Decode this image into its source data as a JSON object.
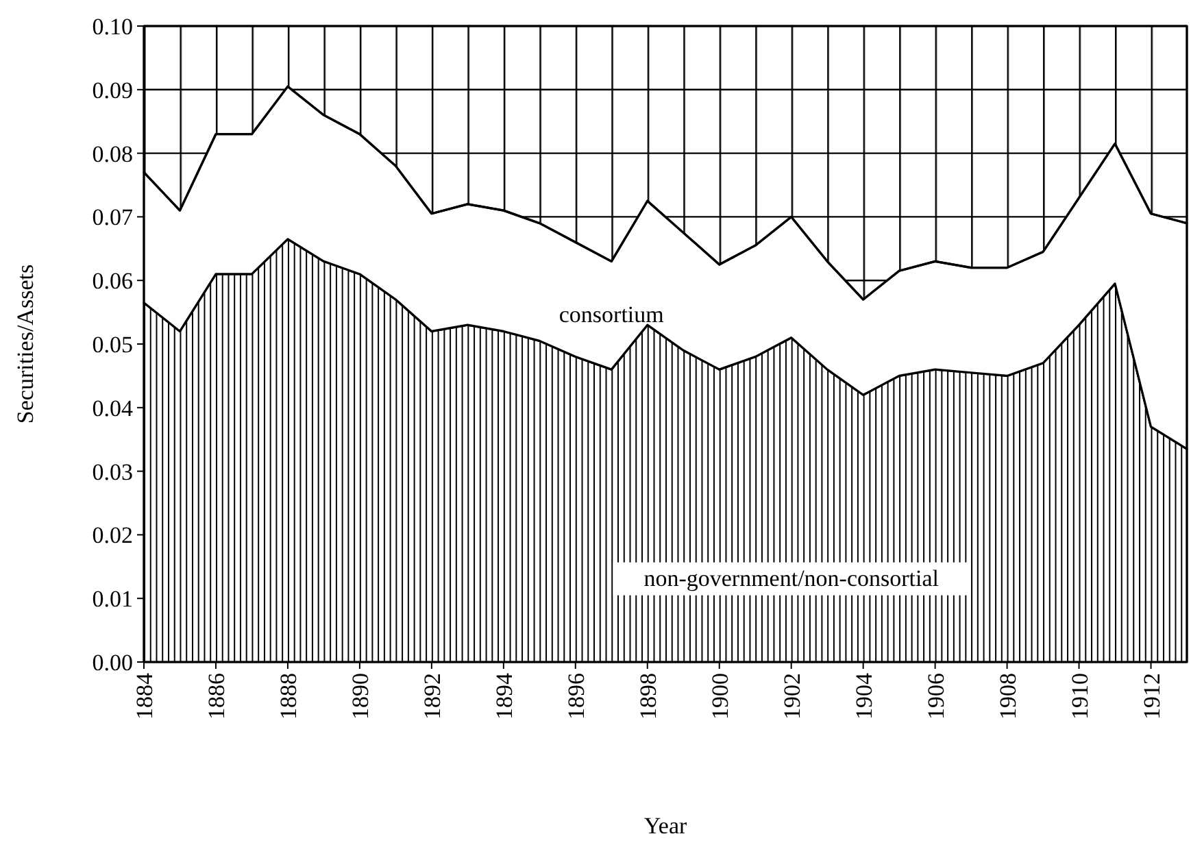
{
  "chart_data": {
    "type": "area",
    "stacked": true,
    "xlabel": "Year",
    "ylabel": "Securities/Assets",
    "x": [
      1884,
      1885,
      1886,
      1887,
      1888,
      1889,
      1890,
      1891,
      1892,
      1893,
      1894,
      1895,
      1896,
      1897,
      1898,
      1899,
      1900,
      1901,
      1902,
      1903,
      1904,
      1905,
      1906,
      1907,
      1908,
      1909,
      1910,
      1911,
      1912,
      1913
    ],
    "xlim": [
      1884,
      1913
    ],
    "xticks": [
      1884,
      1886,
      1888,
      1890,
      1892,
      1894,
      1896,
      1898,
      1900,
      1902,
      1904,
      1906,
      1908,
      1910,
      1912
    ],
    "ylim": [
      0,
      0.1
    ],
    "yticks": [
      {
        "value": 0,
        "label": "0.00"
      },
      {
        "value": 0.01,
        "label": "0.01"
      },
      {
        "value": 0.02,
        "label": "0.02"
      },
      {
        "value": 0.03,
        "label": "0.03"
      },
      {
        "value": 0.04,
        "label": "0.04"
      },
      {
        "value": 0.05,
        "label": "0.05"
      },
      {
        "value": 0.06,
        "label": "0.06"
      },
      {
        "value": 0.07,
        "label": "0.07"
      },
      {
        "value": 0.08,
        "label": "0.08"
      },
      {
        "value": 0.09,
        "label": "0.09"
      },
      {
        "value": 0.1,
        "label": "0.10"
      }
    ],
    "grid": "y",
    "series": [
      {
        "name": "non-government/non-consortial",
        "color": "#000000",
        "values": [
          0.0565,
          0.052,
          0.061,
          0.061,
          0.0665,
          0.063,
          0.061,
          0.057,
          0.052,
          0.053,
          0.052,
          0.0505,
          0.048,
          0.046,
          0.053,
          0.049,
          0.046,
          0.048,
          0.051,
          0.046,
          0.042,
          0.045,
          0.046,
          0.0455,
          0.045,
          0.047,
          0.053,
          0.0595,
          0.037,
          0.0335
        ]
      },
      {
        "name": "consortium",
        "color": "#ffffff",
        "values": [
          0.0205,
          0.019,
          0.022,
          0.022,
          0.024,
          0.023,
          0.022,
          0.021,
          0.0185,
          0.019,
          0.019,
          0.0185,
          0.018,
          0.017,
          0.0195,
          0.0185,
          0.0165,
          0.0175,
          0.019,
          0.017,
          0.015,
          0.0165,
          0.017,
          0.0165,
          0.017,
          0.0175,
          0.02,
          0.022,
          0.0335,
          0.0355
        ]
      },
      {
        "color": "#000000",
        "values": [
          0.023,
          0.029,
          0.017,
          0.017,
          0.0095,
          0.014,
          0.017,
          0.022,
          0.0295,
          0.028,
          0.029,
          0.031,
          0.034,
          0.037,
          0.0275,
          0.0325,
          0.0375,
          0.0345,
          0.03,
          0.037,
          0.043,
          0.0385,
          0.037,
          0.038,
          0.038,
          0.0355,
          0.027,
          0.0185,
          0.0295,
          0.031
        ]
      }
    ]
  }
}
